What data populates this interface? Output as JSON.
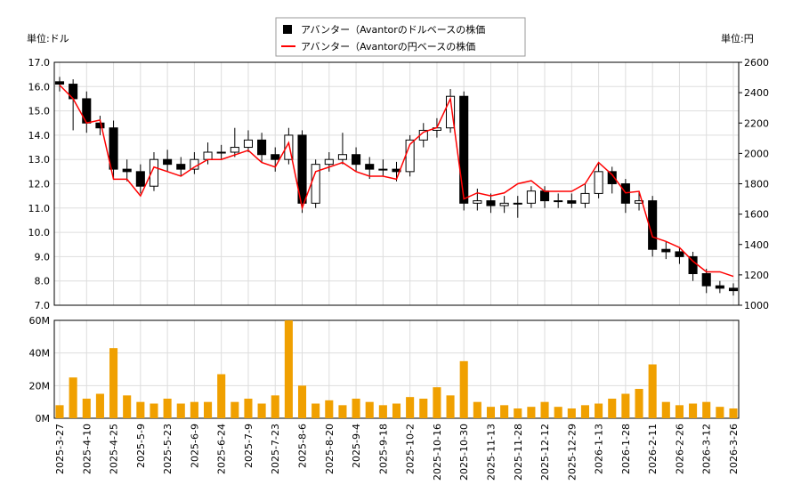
{
  "chart_data": {
    "type": "candlestick",
    "y_unit": "単位:ドル",
    "y2_unit": "単位:円",
    "x": [
      "2025-3-27",
      null,
      "2025-4-10",
      null,
      "2025-4-25",
      null,
      "2025-5-9",
      null,
      "2025-5-23",
      null,
      "2025-6-9",
      null,
      "2025-6-24",
      null,
      "2025-7-9",
      null,
      "2025-7-23",
      null,
      "2025-8-6",
      null,
      "2025-8-20",
      null,
      "2025-9-4",
      null,
      "2025-9-18",
      null,
      "2025-10-2",
      null,
      "2025-10-16",
      null,
      "2025-10-30",
      null,
      "2025-11-13",
      null,
      "2025-11-28",
      null,
      "2025-12-12",
      null,
      "2025-12-29",
      null,
      "2026-1-13",
      null,
      "2026-1-28",
      null,
      "2026-2-11",
      null,
      "2026-2-26",
      null,
      "2026-3-12",
      null,
      "2026-3-26"
    ],
    "ylim": [
      7,
      17
    ],
    "yticks": [
      {
        "value": 7,
        "label": "7.0"
      },
      {
        "value": 8,
        "label": "8.0"
      },
      {
        "value": 9,
        "label": "9.0"
      },
      {
        "value": 10,
        "label": "10.0"
      },
      {
        "value": 11,
        "label": "11.0"
      },
      {
        "value": 12,
        "label": "12.0"
      },
      {
        "value": 13,
        "label": "13.0"
      },
      {
        "value": 14,
        "label": "14.0"
      },
      {
        "value": 15,
        "label": "15.0"
      },
      {
        "value": 16,
        "label": "16.0"
      },
      {
        "value": 17,
        "label": "17.0"
      }
    ],
    "y2lim": [
      1000,
      2600
    ],
    "y2ticks": [
      1000,
      1200,
      1400,
      1600,
      1800,
      2000,
      2200,
      2400,
      2600
    ],
    "grid": true,
    "series": [
      {
        "name": "アバンター（Avantorのドルベースの株価",
        "color": "#000000",
        "open": [
          16.2,
          16.1,
          15.5,
          14.5,
          14.3,
          12.6,
          12.5,
          11.9,
          13.0,
          12.8,
          12.6,
          13.0,
          13.3,
          13.3,
          13.5,
          13.8,
          13.2,
          13.0,
          14.0,
          11.2,
          12.8,
          13.0,
          13.2,
          12.8,
          12.6,
          12.6,
          12.5,
          13.8,
          14.2,
          14.3,
          15.6,
          11.2,
          11.3,
          11.1,
          11.2,
          11.2,
          11.7,
          11.3,
          11.3,
          11.2,
          11.6,
          12.5,
          12.0,
          11.2,
          11.3,
          9.3,
          9.2,
          9.0,
          8.3,
          7.8,
          7.7
        ],
        "high": [
          16.4,
          16.3,
          15.8,
          14.8,
          14.6,
          13.0,
          12.8,
          13.3,
          13.4,
          13.1,
          13.3,
          13.7,
          13.6,
          14.3,
          14.2,
          14.1,
          13.5,
          14.3,
          14.2,
          13.0,
          13.3,
          14.1,
          13.5,
          13.1,
          13.0,
          12.9,
          14.0,
          14.5,
          14.7,
          15.9,
          15.8,
          11.8,
          11.6,
          11.5,
          11.5,
          11.9,
          11.9,
          11.6,
          11.6,
          12.0,
          12.9,
          12.7,
          12.2,
          11.7,
          11.5,
          9.6,
          9.4,
          9.2,
          8.5,
          8.0,
          7.9
        ],
        "low": [
          15.8,
          14.2,
          14.1,
          14.0,
          12.2,
          12.1,
          11.6,
          11.7,
          12.5,
          12.3,
          12.4,
          12.8,
          13.0,
          13.1,
          13.3,
          12.9,
          12.5,
          12.8,
          10.8,
          11.0,
          12.5,
          12.8,
          12.5,
          12.2,
          12.3,
          12.1,
          12.3,
          13.5,
          13.9,
          14.1,
          10.9,
          10.9,
          10.8,
          10.8,
          10.6,
          11.0,
          11.0,
          11.0,
          11.0,
          11.0,
          11.4,
          11.6,
          10.8,
          10.9,
          9.0,
          8.9,
          8.7,
          8.0,
          7.5,
          7.5,
          7.4
        ],
        "close": [
          16.1,
          15.5,
          14.5,
          14.3,
          12.6,
          12.5,
          11.9,
          13.0,
          12.8,
          12.6,
          13.0,
          13.3,
          13.3,
          13.5,
          13.8,
          13.2,
          13.0,
          14.0,
          11.2,
          12.8,
          13.0,
          13.2,
          12.8,
          12.6,
          12.6,
          12.5,
          13.8,
          14.2,
          14.3,
          15.6,
          11.2,
          11.3,
          11.1,
          11.2,
          11.2,
          11.7,
          11.3,
          11.3,
          11.2,
          11.6,
          12.5,
          12.0,
          11.2,
          11.3,
          9.3,
          9.2,
          9.0,
          8.3,
          7.8,
          7.7,
          7.6
        ]
      },
      {
        "name": "アバンター（Avantorの円ベースの株価",
        "color": "#ff0000",
        "axis": "y2",
        "values": [
          2450,
          2360,
          2200,
          2220,
          1830,
          1830,
          1720,
          1910,
          1880,
          1850,
          1910,
          1960,
          1960,
          1990,
          2020,
          1940,
          1910,
          2070,
          1640,
          1880,
          1910,
          1940,
          1880,
          1850,
          1850,
          1830,
          2060,
          2140,
          2170,
          2360,
          1700,
          1740,
          1720,
          1740,
          1800,
          1820,
          1750,
          1750,
          1750,
          1800,
          1940,
          1860,
          1740,
          1750,
          1450,
          1420,
          1380,
          1290,
          1220,
          1220,
          1190
        ]
      }
    ],
    "volume": {
      "color": "#f0a000",
      "values": [
        8000000,
        25000000,
        12000000,
        15000000,
        43000000,
        14000000,
        10000000,
        9000000,
        12000000,
        9000000,
        10000000,
        10000000,
        27000000,
        10000000,
        12000000,
        9000000,
        14000000,
        60000000,
        20000000,
        9000000,
        11000000,
        8000000,
        12000000,
        10000000,
        8000000,
        9000000,
        13000000,
        12000000,
        19000000,
        14000000,
        35000000,
        10000000,
        7000000,
        8000000,
        6000000,
        7000000,
        10000000,
        7000000,
        6000000,
        8000000,
        9000000,
        12000000,
        15000000,
        18000000,
        33000000,
        10000000,
        8000000,
        9000000,
        10000000,
        7000000,
        6000000
      ],
      "ylim": [
        0,
        60000000
      ],
      "yticks": [
        {
          "value": 0,
          "label": "0M"
        },
        {
          "value": 20000000,
          "label": "20M"
        },
        {
          "value": 40000000,
          "label": "40M"
        },
        {
          "value": 60000000,
          "label": "60M"
        }
      ]
    }
  }
}
